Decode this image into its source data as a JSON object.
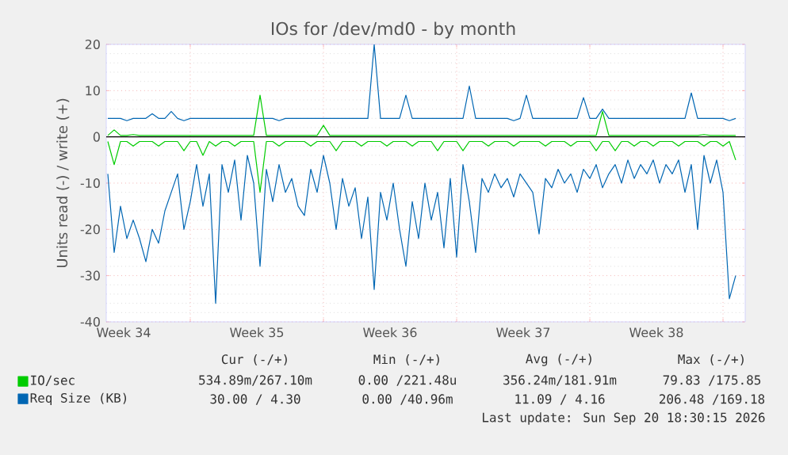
{
  "chart_data": {
    "type": "line",
    "title": "IOs for /dev/md0 - by month",
    "ylabel": "Units read (-) / write (+)",
    "x": [
      "2026-08-19T16:00",
      "2026-08-20T00:00",
      "2026-08-20T08:00",
      "2026-08-20T16:00",
      "2026-08-21T00:00",
      "2026-08-21T08:00",
      "2026-08-21T16:00",
      "2026-08-22T00:00",
      "2026-08-22T08:00",
      "2026-08-22T16:00",
      "2026-08-23T00:00",
      "2026-08-23T08:00",
      "2026-08-23T16:00",
      "2026-08-24T00:00",
      "2026-08-24T08:00",
      "2026-08-24T16:00",
      "2026-08-25T00:00",
      "2026-08-25T08:00",
      "2026-08-25T16:00",
      "2026-08-26T00:00",
      "2026-08-26T08:00",
      "2026-08-26T16:00",
      "2026-08-27T00:00",
      "2026-08-27T08:00",
      "2026-08-27T16:00",
      "2026-08-28T00:00",
      "2026-08-28T08:00",
      "2026-08-28T16:00",
      "2026-08-29T00:00",
      "2026-08-29T08:00",
      "2026-08-29T16:00",
      "2026-08-30T00:00",
      "2026-08-30T08:00",
      "2026-08-30T16:00",
      "2026-08-31T00:00",
      "2026-08-31T08:00",
      "2026-08-31T16:00",
      "2026-09-01T00:00",
      "2026-09-01T08:00",
      "2026-09-01T16:00",
      "2026-09-02T00:00",
      "2026-09-02T08:00",
      "2026-09-02T16:00",
      "2026-09-03T00:00",
      "2026-09-03T08:00",
      "2026-09-03T16:00",
      "2026-09-04T00:00",
      "2026-09-04T08:00",
      "2026-09-04T16:00",
      "2026-09-05T00:00",
      "2026-09-05T08:00",
      "2026-09-05T16:00",
      "2026-09-06T00:00",
      "2026-09-06T08:00",
      "2026-09-06T16:00",
      "2026-09-07T00:00",
      "2026-09-07T08:00",
      "2026-09-07T16:00",
      "2026-09-08T00:00",
      "2026-09-08T08:00",
      "2026-09-08T16:00",
      "2026-09-09T00:00",
      "2026-09-09T08:00",
      "2026-09-09T16:00",
      "2026-09-10T00:00",
      "2026-09-10T08:00",
      "2026-09-10T16:00",
      "2026-09-11T00:00",
      "2026-09-11T08:00",
      "2026-09-11T16:00",
      "2026-09-12T00:00",
      "2026-09-12T08:00",
      "2026-09-12T16:00",
      "2026-09-13T00:00",
      "2026-09-13T08:00",
      "2026-09-13T16:00",
      "2026-09-14T00:00",
      "2026-09-14T08:00",
      "2026-09-14T16:00",
      "2026-09-15T00:00",
      "2026-09-15T08:00",
      "2026-09-15T16:00",
      "2026-09-16T00:00",
      "2026-09-16T08:00",
      "2026-09-16T16:00",
      "2026-09-17T00:00",
      "2026-09-17T08:00",
      "2026-09-17T16:00",
      "2026-09-18T00:00",
      "2026-09-18T08:00",
      "2026-09-18T16:00",
      "2026-09-19T00:00",
      "2026-09-19T08:00",
      "2026-09-19T16:00",
      "2026-09-20T00:00",
      "2026-09-20T08:00",
      "2026-09-20T16:00",
      "2026-09-21T00:00",
      "2026-09-21T08:00",
      "2026-09-21T16:00"
    ],
    "series": [
      {
        "color": "#0066b3",
        "values": [
          -8,
          -25,
          -15,
          -22,
          -18,
          -22,
          -27,
          -20,
          -23,
          -16,
          -12,
          -8,
          -20,
          -14,
          -6,
          -15,
          -8,
          -36,
          -6,
          -12,
          -5,
          -18,
          -4,
          -10,
          -28,
          -7,
          -14,
          -6,
          -12,
          -9,
          -15,
          -17,
          -7,
          -12,
          -4,
          -10,
          -20,
          -9,
          -15,
          -11,
          -22,
          -13,
          -33,
          -12,
          -18,
          -10,
          -20,
          -28,
          -14,
          -22,
          -10,
          -18,
          -12,
          -24,
          -9,
          -26,
          -6,
          -14,
          -25,
          -9,
          -12,
          -8,
          -11,
          -9,
          -13,
          -8,
          -10,
          -12,
          -21,
          -9,
          -11,
          -7,
          -10,
          -8,
          -12,
          -7,
          -9,
          -6,
          -11,
          -8,
          -6,
          -10,
          -5,
          -9,
          -6,
          -8,
          -5,
          -10,
          -6,
          -8,
          -5,
          -12,
          -6,
          -20,
          -4,
          -10,
          -5,
          -12,
          -35,
          -30
        ]
      },
      {
        "name": "Req Size (KB)",
        "color": "#0066b3",
        "values": [
          4,
          4,
          4,
          3.5,
          4,
          4,
          4,
          5,
          4,
          4,
          5.5,
          4,
          3.5,
          4,
          4,
          4,
          4,
          4,
          4,
          4,
          4,
          4,
          4,
          4,
          4,
          4,
          4,
          3.5,
          4,
          4,
          4,
          4,
          4,
          4,
          4,
          4,
          4,
          4,
          4,
          4,
          4,
          4,
          20,
          4,
          4,
          4,
          4,
          9,
          4,
          4,
          4,
          4,
          4,
          4,
          4,
          4,
          4,
          11,
          4,
          4,
          4,
          4,
          4,
          4,
          3.5,
          4,
          9,
          4,
          4,
          4,
          4,
          4,
          4,
          4,
          4,
          8.5,
          4,
          4,
          6,
          4,
          4,
          4,
          4,
          4,
          4,
          4,
          4,
          4,
          4,
          4,
          4,
          4,
          9.5,
          4,
          4,
          4,
          4,
          4,
          3.5,
          4
        ]
      },
      {
        "color": "#00cc00",
        "values": [
          -1,
          -6,
          -1,
          -1,
          -2,
          -1,
          -1,
          -1,
          -2,
          -1,
          -1,
          -1,
          -3,
          -1,
          -1,
          -4,
          -1,
          -2,
          -1,
          -1,
          -2,
          -1,
          -1,
          -1,
          -12,
          -1,
          -1,
          -2,
          -1,
          -1,
          -1,
          -1,
          -2,
          -1,
          -1,
          -1,
          -3,
          -1,
          -1,
          -1,
          -2,
          -1,
          -1,
          -1,
          -2,
          -1,
          -1,
          -1,
          -2,
          -1,
          -1,
          -1,
          -3,
          -1,
          -1,
          -1,
          -3,
          -1,
          -1,
          -1,
          -2,
          -1,
          -1,
          -1,
          -2,
          -1,
          -1,
          -1,
          -1,
          -2,
          -1,
          -1,
          -1,
          -2,
          -1,
          -1,
          -1,
          -3,
          -1,
          -1,
          -3,
          -1,
          -1,
          -2,
          -1,
          -1,
          -2,
          -1,
          -1,
          -1,
          -2,
          -1,
          -1,
          -1,
          -2,
          -1,
          -1,
          -2,
          -1,
          -5
        ]
      },
      {
        "name": "IO/sec",
        "color": "#00cc00",
        "values": [
          0.3,
          1.5,
          0.3,
          0.3,
          0.5,
          0.3,
          0.3,
          0.3,
          0.3,
          0.3,
          0.3,
          0.3,
          0.3,
          0.3,
          0.3,
          0.3,
          0.3,
          0.3,
          0.3,
          0.3,
          0.3,
          0.3,
          0.3,
          0.3,
          9,
          0.3,
          0.3,
          0.3,
          0.3,
          0.3,
          0.3,
          0.3,
          0.3,
          0.3,
          2.5,
          0.3,
          0.3,
          0.3,
          0.3,
          0.3,
          0.3,
          0.3,
          0.3,
          0.3,
          0.3,
          0.3,
          0.3,
          0.3,
          0.3,
          0.3,
          0.3,
          0.3,
          0.3,
          0.3,
          0.3,
          0.3,
          0.3,
          0.3,
          0.3,
          0.3,
          0.3,
          0.3,
          0.3,
          0.3,
          0.3,
          0.3,
          0.3,
          0.3,
          0.3,
          0.3,
          0.3,
          0.3,
          0.3,
          0.3,
          0.3,
          0.3,
          0.3,
          0.3,
          5.5,
          0.3,
          0.3,
          0.3,
          0.3,
          0.3,
          0.3,
          0.3,
          0.3,
          0.3,
          0.3,
          0.3,
          0.3,
          0.3,
          0.3,
          0.3,
          0.5,
          0.3,
          0.3,
          0.3,
          0.3,
          0.3
        ]
      }
    ],
    "xlim": [
      "2026-08-19T14:00",
      "2026-09-22T04:00"
    ],
    "xticks": [
      {
        "value": "2026-08-20T12:00",
        "label": "Week 34"
      },
      {
        "value": "2026-08-24T00:00",
        "label": null
      },
      {
        "value": "2026-08-27T12:00",
        "label": "Week 35"
      },
      {
        "value": "2026-08-31T00:00",
        "label": null
      },
      {
        "value": "2026-09-03T12:00",
        "label": "Week 36"
      },
      {
        "value": "2026-09-07T00:00",
        "label": null
      },
      {
        "value": "2026-09-10T12:00",
        "label": "Week 37"
      },
      {
        "value": "2026-09-14T00:00",
        "label": null
      },
      {
        "value": "2026-09-17T12:00",
        "label": "Week 38"
      },
      {
        "value": "2026-09-21T00:00",
        "label": null
      }
    ],
    "ylim": [
      -40,
      20
    ],
    "yticks": [
      -40,
      -30,
      -20,
      -10,
      0,
      10,
      20
    ],
    "ref_lines": [
      {
        "axis": "y",
        "value": 0,
        "color": "#000000"
      }
    ],
    "grid": true,
    "legend": "bottom",
    "annotations": [
      "Cur (-/+)",
      "Min (-/+)",
      "Avg (-/+)",
      "Max (-/+)",
      "534.89m/267.10m",
      "0.00 /221.48u",
      "356.24m/181.91m",
      "79.83 /175.85",
      "30.00 / 4.30",
      "0.00 /40.96m",
      "11.09 / 4.16",
      "206.48 /169.18",
      "Last update: Sun Sep 20 18:30:15 2026"
    ]
  }
}
